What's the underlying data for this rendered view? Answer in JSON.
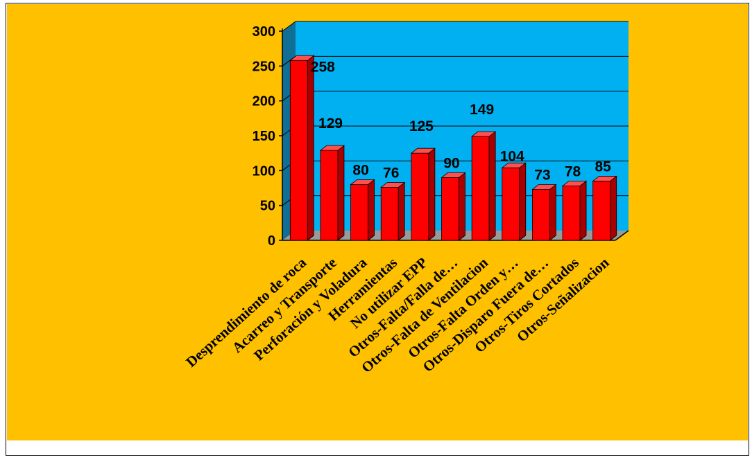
{
  "chart_data": {
    "type": "bar",
    "categories": [
      "Desprendimiento de roca",
      "Acarreo y Transporte",
      "Perforación y Voladura",
      "Herramientas",
      "No utilizar EPP",
      "Otros-Falta/Falla de…",
      "Otros-Falta de Ventilacion",
      "Otros-Falta Orden y…",
      "Otros-Disparo Fuera de…",
      "Otros-Tiros Cortados",
      "Otros-Señalizacion"
    ],
    "values": [
      258,
      129,
      80,
      76,
      125,
      90,
      149,
      104,
      73,
      78,
      85
    ],
    "title": "",
    "xlabel": "",
    "ylabel": "",
    "ylim": [
      0,
      300
    ],
    "yticks": [
      0,
      50,
      100,
      150,
      200,
      250,
      300
    ],
    "grid": true,
    "legend": "none",
    "colors": {
      "background": "#FFC000",
      "plot_wall": "#00B0F0",
      "side_wall": "#0F6F97",
      "floor": "#9A9A9A",
      "bar_front": "#FF0000",
      "bar_side": "#A80000",
      "bar_top": "#FF5050"
    }
  }
}
